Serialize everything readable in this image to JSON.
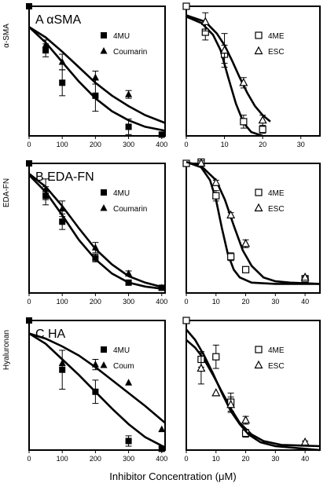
{
  "xlabel": "Inhibitor Concentration (μM)",
  "chart_data": [
    {
      "type": "scatter",
      "panel_label": "A  αSMA",
      "ylabel": "α-SMA",
      "xlim": [
        0,
        410
      ],
      "ylim": [
        0,
        100
      ],
      "xticks": [
        0,
        100,
        200,
        300,
        400
      ],
      "legend": "top-right",
      "series": [
        {
          "name": "4MU",
          "marker": "square",
          "x": [
            0,
            50,
            100,
            200,
            300,
            400
          ],
          "y": [
            100,
            66,
            41,
            31,
            7,
            1
          ],
          "err": [
            0,
            5,
            10,
            12,
            6,
            2
          ],
          "fit_x": [
            0,
            50,
            100,
            150,
            200,
            250,
            300,
            350,
            410
          ],
          "fit_y": [
            84,
            72,
            57,
            42,
            29,
            19,
            12,
            7,
            4
          ]
        },
        {
          "name": "Coumarin",
          "marker": "triangle",
          "x": [
            50,
            100,
            200,
            300
          ],
          "y": [
            70,
            57,
            45,
            32
          ],
          "err": [
            4,
            6,
            5,
            3
          ],
          "fit_x": [
            0,
            50,
            100,
            150,
            200,
            250,
            300,
            350,
            410
          ],
          "fit_y": [
            84,
            76,
            65,
            53,
            41,
            31,
            23,
            16,
            10
          ]
        }
      ]
    },
    {
      "type": "scatter",
      "panel_label": "",
      "ylabel": "",
      "xlim": [
        0,
        35
      ],
      "ylim": [
        0,
        100
      ],
      "xticks": [
        0,
        10,
        20,
        30
      ],
      "legend": "top-right",
      "series": [
        {
          "name": "4ME",
          "marker": "open-square",
          "x": [
            0,
            5,
            10,
            15,
            20
          ],
          "y": [
            100,
            80,
            63,
            11,
            5
          ],
          "err": [
            0,
            6,
            7,
            5,
            3
          ],
          "fit_x": [
            0,
            4,
            7,
            9,
            11,
            13,
            15,
            17,
            20
          ],
          "fit_y": [
            92,
            87,
            78,
            66,
            45,
            25,
            10,
            3,
            0
          ]
        },
        {
          "name": "ESC",
          "marker": "open-triangle",
          "x": [
            5,
            10,
            15,
            20
          ],
          "y": [
            88,
            66,
            41,
            12
          ],
          "err": [
            7,
            13,
            4,
            4
          ],
          "fit_x": [
            0,
            5,
            8,
            10,
            12,
            14,
            16,
            18,
            20,
            22
          ],
          "fit_y": [
            93,
            88,
            79,
            70,
            58,
            45,
            33,
            23,
            16,
            11
          ]
        }
      ]
    },
    {
      "type": "scatter",
      "panel_label": "B  EDA-FN",
      "ylabel": "EDA-FN",
      "xlim": [
        0,
        410
      ],
      "ylim": [
        0,
        100
      ],
      "xticks": [
        0,
        100,
        200,
        300,
        400
      ],
      "legend": "top-right",
      "series": [
        {
          "name": "4MU",
          "marker": "square",
          "x": [
            0,
            50,
            100,
            200,
            300,
            400
          ],
          "y": [
            100,
            75,
            55,
            27,
            8,
            4
          ],
          "err": [
            0,
            7,
            6,
            3,
            2,
            1
          ],
          "fit_x": [
            0,
            50,
            100,
            150,
            200,
            250,
            300,
            350,
            410
          ],
          "fit_y": [
            91,
            78,
            60,
            41,
            26,
            15,
            8,
            5,
            3
          ]
        },
        {
          "name": "Coumarin",
          "marker": "triangle",
          "x": [
            50,
            100,
            200,
            300,
            400
          ],
          "y": [
            80,
            65,
            35,
            15,
            4
          ],
          "err": [
            8,
            6,
            4,
            2,
            1
          ],
          "fit_x": [
            0,
            50,
            100,
            150,
            200,
            250,
            300,
            350,
            410
          ],
          "fit_y": [
            92,
            82,
            67,
            50,
            34,
            22,
            13,
            8,
            4
          ]
        }
      ]
    },
    {
      "type": "scatter",
      "panel_label": "",
      "ylabel": "",
      "xlim": [
        0,
        45
      ],
      "ylim": [
        0,
        100
      ],
      "xticks": [
        0,
        10,
        20,
        30,
        40
      ],
      "legend": "top-right",
      "series": [
        {
          "name": "4ME",
          "marker": "open-square",
          "x": [
            0,
            5,
            10,
            15,
            20,
            40
          ],
          "y": [
            100,
            101,
            75,
            28,
            18,
            11
          ],
          "err": [
            0,
            2,
            4,
            3,
            1,
            1
          ],
          "fit_x": [
            0,
            5,
            8,
            10,
            12,
            14,
            16,
            18,
            22,
            30,
            45
          ],
          "fit_y": [
            101,
            97,
            87,
            72,
            50,
            30,
            18,
            12,
            8,
            7,
            7
          ]
        },
        {
          "name": "ESC",
          "marker": "open-triangle",
          "x": [
            5,
            10,
            15,
            20,
            40
          ],
          "y": [
            100,
            85,
            60,
            38,
            12
          ],
          "err": [
            2,
            2,
            2,
            3,
            1
          ],
          "fit_x": [
            0,
            5,
            10,
            13,
            16,
            19,
            22,
            26,
            30,
            35,
            45
          ],
          "fit_y": [
            101,
            98,
            87,
            72,
            52,
            33,
            21,
            12,
            9,
            8,
            7
          ]
        }
      ]
    },
    {
      "type": "scatter",
      "panel_label": "C  HA",
      "ylabel": "Hyaluronan",
      "xlim": [
        0,
        410
      ],
      "ylim": [
        0,
        100
      ],
      "xticks": [
        0,
        100,
        200,
        300,
        400
      ],
      "legend": "top-right",
      "series": [
        {
          "name": "4MU",
          "marker": "square",
          "x": [
            0,
            100,
            200,
            300,
            400
          ],
          "y": [
            100,
            62,
            45,
            7,
            1
          ],
          "err": [
            0,
            15,
            9,
            4,
            2
          ],
          "fit_x": [
            0,
            50,
            100,
            150,
            200,
            250,
            300,
            350,
            410
          ],
          "fit_y": [
            90,
            82,
            70,
            58,
            45,
            32,
            20,
            10,
            2
          ]
        },
        {
          "name": "Coum",
          "marker": "triangle",
          "x": [
            100,
            200,
            300,
            400
          ],
          "y": [
            67,
            66,
            52,
            16
          ],
          "err": [
            0,
            4,
            0,
            0
          ],
          "fit_x": [
            0,
            50,
            100,
            150,
            200,
            250,
            300,
            350,
            410
          ],
          "fit_y": [
            90,
            86,
            80,
            73,
            64,
            54,
            44,
            34,
            21
          ]
        }
      ]
    },
    {
      "type": "scatter",
      "panel_label": "",
      "ylabel": "",
      "xlim": [
        0,
        45
      ],
      "ylim": [
        0,
        100
      ],
      "xticks": [
        0,
        10,
        20,
        30,
        40
      ],
      "legend": "top-right",
      "series": [
        {
          "name": "4ME",
          "marker": "open-square",
          "x": [
            0,
            5,
            10,
            15,
            20
          ],
          "y": [
            100,
            70,
            72,
            37,
            13
          ],
          "err": [
            0,
            6,
            9,
            7,
            3
          ],
          "fit_x": [
            0,
            3,
            6,
            9,
            12,
            15,
            18,
            22,
            26,
            32,
            45
          ],
          "fit_y": [
            85,
            79,
            70,
            58,
            45,
            32,
            21,
            12,
            7,
            4,
            3
          ]
        },
        {
          "name": "ESC",
          "marker": "open-triangle",
          "x": [
            5,
            10,
            15,
            20,
            40
          ],
          "y": [
            63,
            44,
            35,
            23,
            6
          ],
          "err": [
            12,
            0,
            6,
            3,
            1
          ],
          "fit_x": [
            0,
            3,
            6,
            9,
            12,
            15,
            18,
            21,
            25,
            30,
            45
          ],
          "fit_y": [
            93,
            85,
            73,
            59,
            44,
            30,
            20,
            12,
            6,
            3,
            0
          ]
        }
      ]
    }
  ]
}
